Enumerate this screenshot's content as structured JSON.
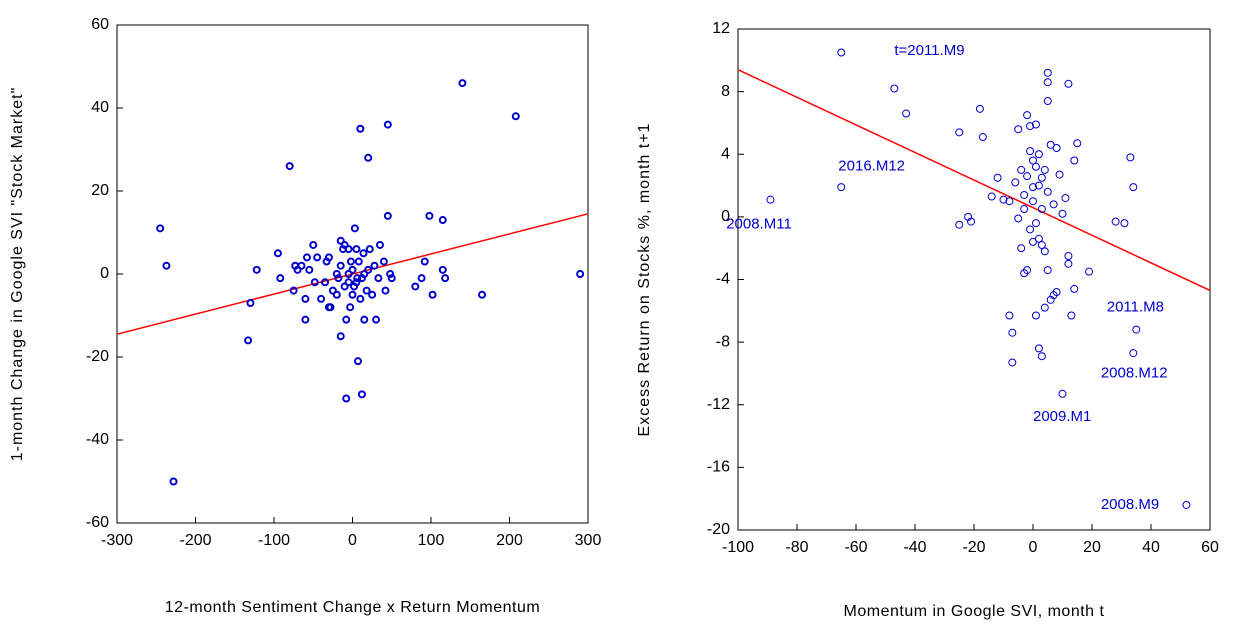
{
  "chart_data": [
    {
      "type": "scatter",
      "x_label": "12-month Sentiment Change x Return Momentum",
      "y_label": "1-month Change in Google SVI \"Stock Market\"",
      "xlim": [
        -300,
        300
      ],
      "ylim": [
        -60,
        60
      ],
      "xticks": [
        -300,
        -200,
        -100,
        0,
        100,
        200,
        300
      ],
      "yticks": [
        -60,
        -40,
        -20,
        0,
        20,
        40,
        60
      ],
      "color": "#0000cc",
      "x": [
        -245,
        -237,
        -228,
        -133,
        -130,
        -122,
        -95,
        -92,
        -80,
        -75,
        -73,
        -70,
        -65,
        -60,
        -60,
        -58,
        -55,
        -50,
        -48,
        -45,
        -40,
        -35,
        -33,
        -30,
        -30,
        -28,
        -25,
        -20,
        -18,
        -15,
        -15,
        -12,
        -10,
        -10,
        -8,
        -8,
        -5,
        -5,
        -3,
        -2,
        0,
        0,
        2,
        3,
        5,
        6,
        7,
        8,
        10,
        12,
        12,
        14,
        15,
        15,
        18,
        20,
        22,
        25,
        28,
        30,
        33,
        35,
        40,
        42,
        45,
        45,
        48,
        50,
        80,
        88,
        92,
        98,
        102,
        115,
        115,
        118,
        140,
        165,
        208,
        290,
        -5,
        5,
        -15,
        20,
        10,
        -20
      ],
      "y": [
        11,
        2,
        -50,
        -16,
        -7,
        1,
        5,
        -1,
        26,
        -4,
        2,
        1,
        2,
        -11,
        -6,
        4,
        1,
        7,
        -2,
        4,
        -6,
        -2,
        3,
        4,
        -8,
        -8,
        -4,
        0,
        -1,
        8,
        -15,
        6,
        -3,
        7,
        -11,
        -30,
        -2,
        6,
        -8,
        3,
        -5,
        1,
        -3,
        11,
        6,
        -1,
        -21,
        3,
        35,
        -29,
        -1,
        5,
        0,
        -11,
        -4,
        28,
        6,
        -5,
        2,
        -11,
        -1,
        7,
        3,
        -4,
        36,
        14,
        0,
        -1,
        -3,
        -1,
        3,
        14,
        -5,
        13,
        1,
        -1,
        46,
        -5,
        38,
        0,
        0,
        -2,
        2,
        1,
        -6,
        -5
      ],
      "fit_line": {
        "x": [
          -300,
          300
        ],
        "y": [
          -14.5,
          14.5
        ],
        "color": "#ff0000"
      }
    },
    {
      "type": "scatter",
      "x_label": "Momentum in Google SVI, month t",
      "y_label": "Excess Return on Stocks %,  month t+1",
      "xlim": [
        -100,
        60
      ],
      "ylim": [
        -20,
        12
      ],
      "xticks": [
        -100,
        -80,
        -60,
        -40,
        -20,
        0,
        20,
        40,
        60
      ],
      "yticks": [
        -20,
        -16,
        -12,
        -8,
        -4,
        0,
        4,
        8,
        12
      ],
      "color": "#0000cc",
      "x": [
        -89,
        -65,
        -65,
        -47,
        -43,
        -25,
        -25,
        -22,
        -21,
        -18,
        -17,
        -14,
        -12,
        -10,
        -8,
        -8,
        -7,
        -7,
        -6,
        -5,
        -5,
        -4,
        -4,
        -3,
        -3,
        -2,
        -2,
        -1,
        -1,
        0,
        0,
        0,
        1,
        1,
        1,
        2,
        2,
        2,
        3,
        3,
        3,
        4,
        4,
        4,
        5,
        5,
        5,
        5,
        5,
        6,
        6,
        7,
        7,
        8,
        8,
        9,
        10,
        10,
        11,
        12,
        12,
        12,
        13,
        14,
        14,
        15,
        19,
        28,
        31,
        33,
        34,
        34,
        35,
        52,
        -3,
        0,
        2,
        -1,
        3,
        -2,
        1
      ],
      "y": [
        1.1,
        1.9,
        10.5,
        8.2,
        6.6,
        5.4,
        -0.5,
        0,
        -0.3,
        6.9,
        5.1,
        1.3,
        2.5,
        1.1,
        1.0,
        -6.3,
        -7.4,
        -9.3,
        2.2,
        5.6,
        -0.1,
        -2,
        3,
        -3.6,
        1.4,
        6.5,
        -3.4,
        5.8,
        4.2,
        3.6,
        -1.6,
        1.9,
        5.9,
        -0.4,
        -6.3,
        4.0,
        -8.4,
        -1.4,
        -8.9,
        2.5,
        0.5,
        3.0,
        -2.2,
        -5.8,
        9.2,
        8.6,
        7.4,
        1.6,
        -3.4,
        -5.3,
        4.6,
        -5.0,
        0.8,
        4.4,
        -4.8,
        2.7,
        -11.3,
        0.2,
        1.2,
        8.5,
        -2.5,
        -3.0,
        -6.3,
        3.6,
        -4.6,
        4.7,
        -3.5,
        -0.3,
        -0.4,
        3.8,
        1.9,
        -8.7,
        -7.2,
        -18.4,
        0.5,
        1,
        2,
        -0.8,
        -1.8,
        2.6,
        3.2
      ],
      "fit_line": {
        "x": [
          -100,
          60
        ],
        "y": [
          9.4,
          -4.7
        ],
        "color": "#ff0000"
      },
      "annotations": [
        {
          "text": "t=2011.M9",
          "x": -47,
          "y": 10.6
        },
        {
          "text": "2016.M12",
          "x": -66,
          "y": 3.2
        },
        {
          "text": "2008.M11",
          "x": -104,
          "y": -0.5
        },
        {
          "text": "2011.M8",
          "x": 25,
          "y": -5.8
        },
        {
          "text": "2008.M12",
          "x": 23,
          "y": -10
        },
        {
          "text": "2009.M1",
          "x": 0,
          "y": -12.8
        },
        {
          "text": "2008.M9",
          "x": 23,
          "y": -18.4
        }
      ]
    }
  ]
}
